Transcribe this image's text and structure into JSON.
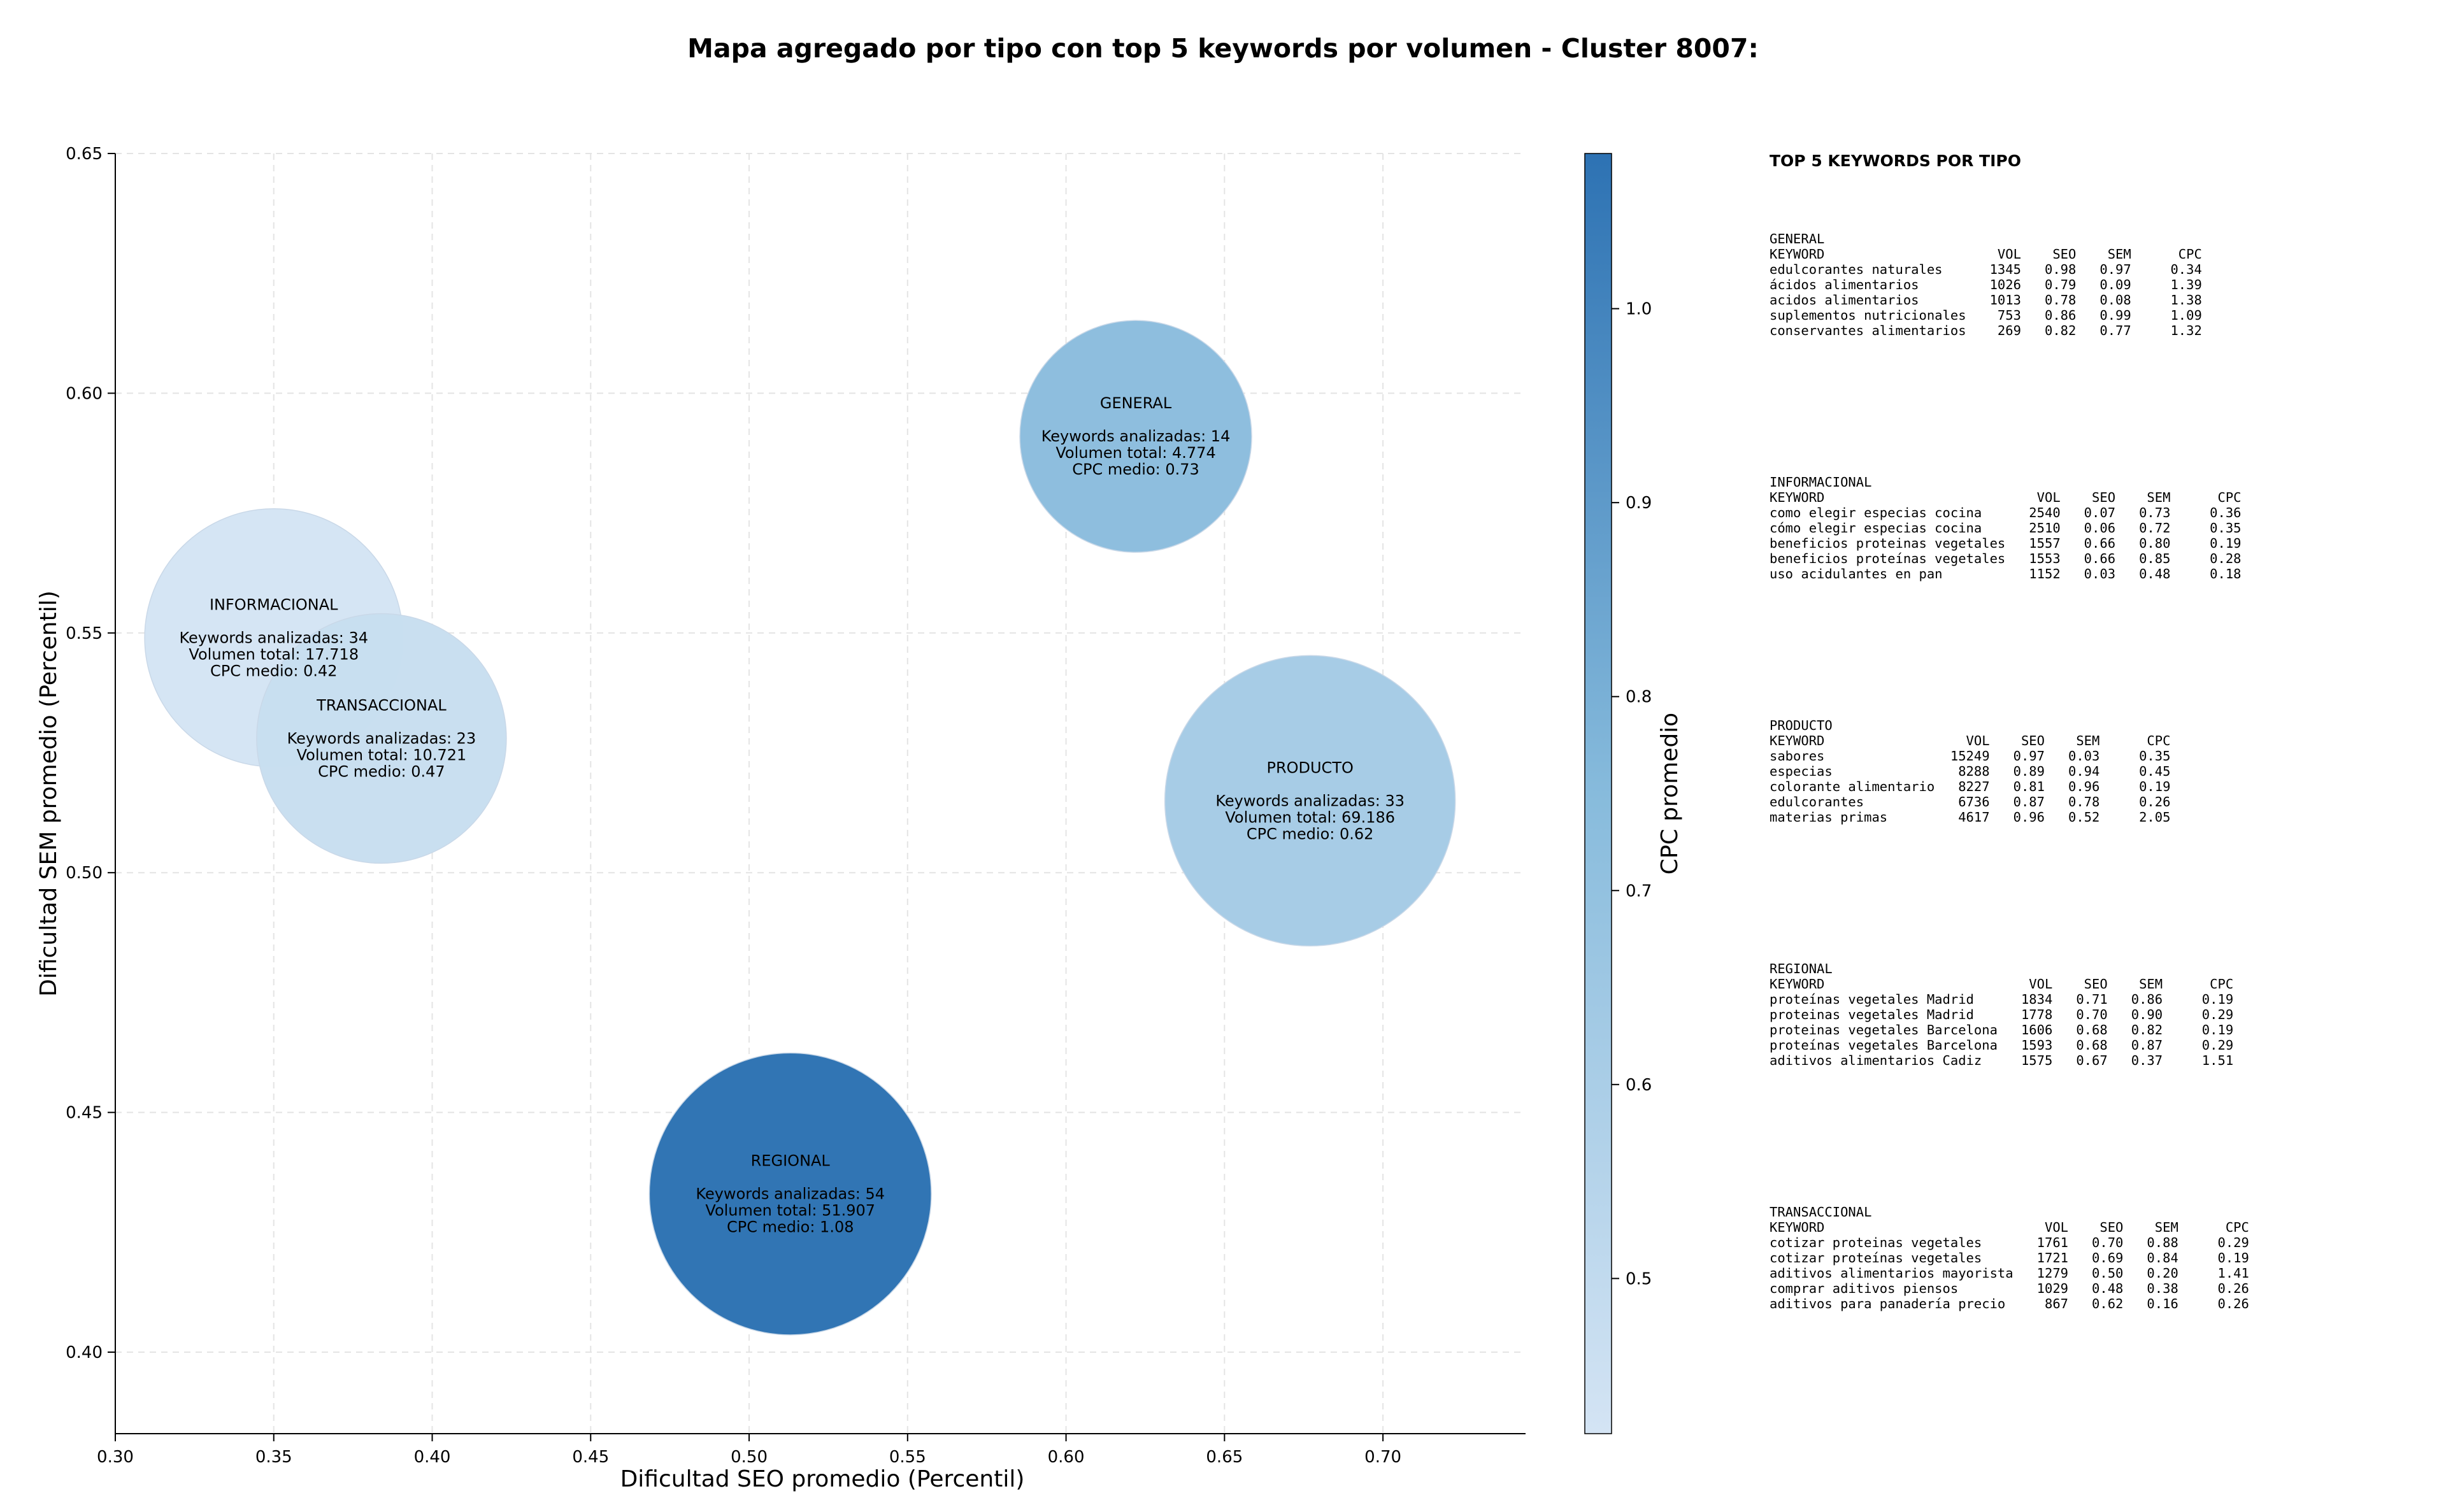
{
  "chart_data": {
    "type": "scatter",
    "title": "Mapa agregado por tipo con top 5 keywords por volumen - Cluster 8007:",
    "xlabel": "Dificultad SEO promedio (Percentil)",
    "ylabel": "Dificultad SEM promedio (Percentil)",
    "xlim": [
      0.3,
      0.745
    ],
    "ylim": [
      0.383,
      0.65
    ],
    "xticks": [
      "0.30",
      "0.35",
      "0.40",
      "0.45",
      "0.50",
      "0.55",
      "0.60",
      "0.65",
      "0.70"
    ],
    "yticks": [
      "0.40",
      "0.45",
      "0.50",
      "0.55",
      "0.60",
      "0.65"
    ],
    "grid": true,
    "colorbar": {
      "label": "CPC promedio",
      "min": 0.42,
      "max": 1.08,
      "ticks": [
        "0.5",
        "0.6",
        "0.7",
        "0.8",
        "0.9",
        "1.0"
      ],
      "colormap": "Blues"
    },
    "points": [
      {
        "name": "GENERAL",
        "x": 0.622,
        "y": 0.591,
        "cpc": 0.73,
        "keywords": 14,
        "volume": 4774,
        "lines": [
          "GENERAL",
          "",
          "Keywords analizadas: 14",
          "Volumen total: 4.774",
          "CPC medio: 0.73"
        ]
      },
      {
        "name": "INFORMACIONAL",
        "x": 0.35,
        "y": 0.549,
        "cpc": 0.42,
        "keywords": 34,
        "volume": 17718,
        "lines": [
          "INFORMACIONAL",
          "",
          "Keywords analizadas: 34",
          "Volumen total: 17.718",
          "CPC medio: 0.42"
        ]
      },
      {
        "name": "TRANSACCIONAL",
        "x": 0.384,
        "y": 0.528,
        "cpc": 0.47,
        "keywords": 23,
        "volume": 10721,
        "lines": [
          "TRANSACCIONAL",
          "",
          "Keywords analizadas: 23",
          "Volumen total: 10.721",
          "CPC medio: 0.47"
        ]
      },
      {
        "name": "PRODUCTO",
        "x": 0.677,
        "y": 0.515,
        "cpc": 0.62,
        "keywords": 33,
        "volume": 69186,
        "lines": [
          "PRODUCTO",
          "",
          "Keywords analizadas: 33",
          "Volumen total: 69.186",
          "CPC medio: 0.62"
        ]
      },
      {
        "name": "REGIONAL",
        "x": 0.513,
        "y": 0.433,
        "cpc": 1.08,
        "keywords": 54,
        "volume": 51907,
        "lines": [
          "REGIONAL",
          "",
          "Keywords analizadas: 54",
          "Volumen total: 51.907",
          "CPC medio: 1.08"
        ]
      }
    ]
  },
  "table": {
    "heading": "TOP 5 KEYWORDS POR TIPO",
    "blocks": [
      {
        "name": "general",
        "text": "GENERAL\nKEYWORD                      VOL    SEO    SEM      CPC\nedulcorantes naturales      1345   0.98   0.97     0.34\nácidos alimentarios         1026   0.79   0.09     1.39\nacidos alimentarios         1013   0.78   0.08     1.38\nsuplementos nutricionales    753   0.86   0.99     1.09\nconservantes alimentarios    269   0.82   0.77     1.32"
      },
      {
        "name": "informacional",
        "text": "INFORMACIONAL\nKEYWORD                           VOL    SEO    SEM      CPC\ncomo elegir especias cocina      2540   0.07   0.73     0.36\ncómo elegir especias cocina      2510   0.06   0.72     0.35\nbeneficios proteinas vegetales   1557   0.66   0.80     0.19\nbeneficios proteínas vegetales   1553   0.66   0.85     0.28\nuso acidulantes en pan           1152   0.03   0.48     0.18"
      },
      {
        "name": "producto",
        "text": "PRODUCTO\nKEYWORD                  VOL    SEO    SEM      CPC\nsabores                15249   0.97   0.03     0.35\nespecias                8288   0.89   0.94     0.45\ncolorante alimentario   8227   0.81   0.96     0.19\nedulcorantes            6736   0.87   0.78     0.26\nmaterias primas         4617   0.96   0.52     2.05"
      },
      {
        "name": "regional",
        "text": "REGIONAL\nKEYWORD                          VOL    SEO    SEM      CPC\nproteínas vegetales Madrid      1834   0.71   0.86     0.19\nproteinas vegetales Madrid      1778   0.70   0.90     0.29\nproteinas vegetales Barcelona   1606   0.68   0.82     0.19\nproteínas vegetales Barcelona   1593   0.68   0.87     0.29\naditivos alimentarios Cadiz     1575   0.67   0.37     1.51"
      },
      {
        "name": "transaccional",
        "text": "TRANSACCIONAL\nKEYWORD                            VOL    SEO    SEM      CPC\ncotizar proteinas vegetales       1761   0.70   0.88     0.29\ncotizar proteínas vegetales       1721   0.69   0.84     0.19\naditivos alimentarios mayorista   1279   0.50   0.20     1.41\ncomprar aditivos piensos          1029   0.48   0.38     0.26\naditivos para panadería precio     867   0.62   0.16     0.26"
      }
    ]
  }
}
